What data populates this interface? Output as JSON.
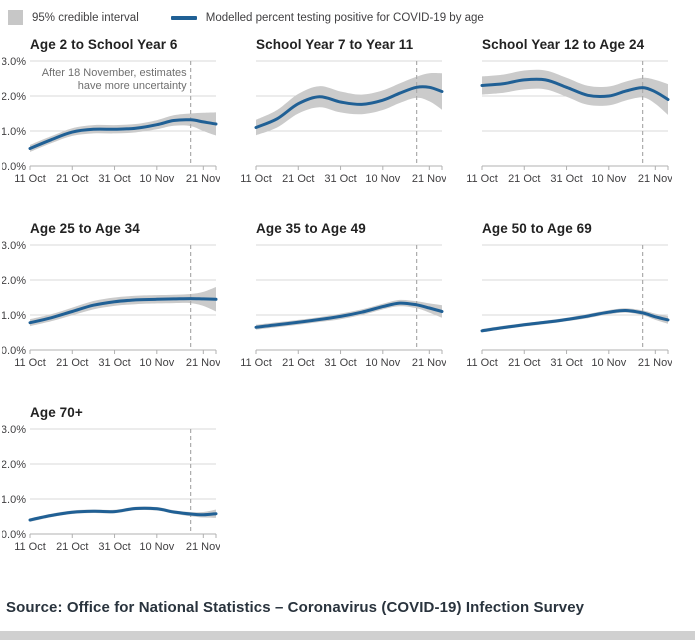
{
  "legend": {
    "ci_label": "95% credible interval",
    "line_label": "Modelled percent testing positive for COVID-19 by age"
  },
  "annotation": {
    "line1": "After 18 November, estimates",
    "line2": "have more uncertainty"
  },
  "source": "Source: Office for National Statistics – Coronavirus (COVID-19) Infection Survey",
  "colors": {
    "line": "#206095",
    "band": "#cbcbcb",
    "grid": "#d8d8d8",
    "axis": "#b0b0b0",
    "dashed": "#ababab",
    "tick_text": "#414042",
    "annotation_text": "#6f6f6f"
  },
  "chart_data": {
    "type": "line",
    "unit": "%",
    "title": "Modelled percent testing positive for COVID-19 by age",
    "x_domain_days": [
      0,
      44
    ],
    "x_tick_days": [
      0,
      10,
      20,
      30,
      41
    ],
    "x_tick_labels": [
      "11 Oct",
      "21 Oct",
      "31 Oct",
      "10 Nov",
      "21 Nov"
    ],
    "ylim": [
      0,
      3
    ],
    "y_tick_values": [
      0,
      1,
      2,
      3
    ],
    "y_tick_labels": [
      "0.0%",
      "1.0%",
      "2.0%",
      "3.0%"
    ],
    "uncertainty_day": 38,
    "uncertainty_date": "18 November",
    "grid": "horizontal",
    "legend_position": "top",
    "x_days": [
      0,
      5,
      10,
      15,
      20,
      25,
      30,
      34,
      38,
      41,
      44
    ],
    "series": [
      {
        "name": "Age 2 to School Year 6",
        "mean": [
          0.5,
          0.75,
          0.97,
          1.05,
          1.05,
          1.08,
          1.18,
          1.3,
          1.32,
          1.26,
          1.2
        ],
        "ci_half": [
          0.1,
          0.1,
          0.11,
          0.12,
          0.12,
          0.12,
          0.13,
          0.15,
          0.18,
          0.26,
          0.33
        ],
        "show_y_labels": true,
        "annotated": true
      },
      {
        "name": "School Year 7 to Year 11",
        "mean": [
          1.1,
          1.35,
          1.78,
          1.98,
          1.83,
          1.76,
          1.88,
          2.08,
          2.25,
          2.25,
          2.13
        ],
        "ci_half": [
          0.22,
          0.25,
          0.28,
          0.3,
          0.3,
          0.28,
          0.28,
          0.28,
          0.3,
          0.4,
          0.52
        ],
        "show_y_labels": false,
        "annotated": false
      },
      {
        "name": "School Year 12 to Age 24",
        "mean": [
          2.3,
          2.35,
          2.46,
          2.46,
          2.25,
          2.02,
          2.0,
          2.14,
          2.24,
          2.12,
          1.9
        ],
        "ci_half": [
          0.26,
          0.26,
          0.27,
          0.27,
          0.27,
          0.27,
          0.27,
          0.27,
          0.28,
          0.34,
          0.44
        ],
        "show_y_labels": false,
        "annotated": false
      },
      {
        "name": "Age 25 to Age 34",
        "mean": [
          0.78,
          0.92,
          1.1,
          1.28,
          1.38,
          1.43,
          1.45,
          1.46,
          1.47,
          1.46,
          1.45
        ],
        "ci_half": [
          0.1,
          0.1,
          0.11,
          0.12,
          0.12,
          0.12,
          0.12,
          0.12,
          0.13,
          0.2,
          0.35
        ],
        "show_y_labels": true,
        "annotated": false
      },
      {
        "name": "Age 35 to Age 49",
        "mean": [
          0.65,
          0.72,
          0.79,
          0.87,
          0.96,
          1.08,
          1.24,
          1.34,
          1.29,
          1.2,
          1.1
        ],
        "ci_half": [
          0.07,
          0.07,
          0.07,
          0.07,
          0.08,
          0.08,
          0.08,
          0.09,
          0.1,
          0.13,
          0.18
        ],
        "show_y_labels": false,
        "annotated": false
      },
      {
        "name": "Age 50 to Age 69",
        "mean": [
          0.55,
          0.64,
          0.72,
          0.79,
          0.87,
          0.97,
          1.08,
          1.13,
          1.06,
          0.95,
          0.86
        ],
        "ci_half": [
          0.05,
          0.05,
          0.05,
          0.05,
          0.05,
          0.06,
          0.06,
          0.06,
          0.07,
          0.09,
          0.11
        ],
        "show_y_labels": false,
        "annotated": false
      },
      {
        "name": "Age 70+",
        "mean": [
          0.4,
          0.53,
          0.62,
          0.65,
          0.64,
          0.73,
          0.72,
          0.63,
          0.57,
          0.55,
          0.58
        ],
        "ci_half": [
          0.05,
          0.05,
          0.05,
          0.05,
          0.05,
          0.05,
          0.05,
          0.05,
          0.06,
          0.08,
          0.12
        ],
        "show_y_labels": true,
        "annotated": false
      }
    ],
    "rows": [
      [
        0,
        1,
        2
      ],
      [
        3,
        4,
        5
      ],
      [
        6
      ]
    ]
  }
}
